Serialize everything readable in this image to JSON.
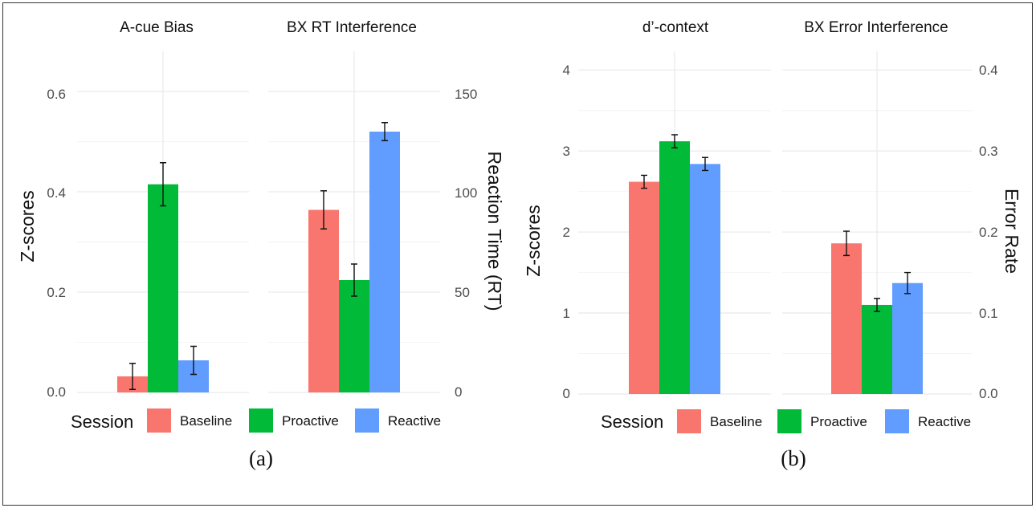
{
  "colors": {
    "Baseline": "#F8766D",
    "Proactive": "#00BA38",
    "Reactive": "#619CFF"
  },
  "figures": [
    {
      "caption": "(a)",
      "legend": {
        "title": "Session",
        "entries": [
          "Baseline",
          "Proactive",
          "Reactive"
        ]
      },
      "left_axis": {
        "label": "Z-scores",
        "ticks": [
          "0.0",
          "0.2",
          "0.4",
          "0.6"
        ]
      },
      "right_axis": {
        "label": "Reaction Time (RT)",
        "ticks": [
          "0",
          "50",
          "100",
          "150"
        ]
      }
    },
    {
      "caption": "(b)",
      "legend": {
        "title": "Session",
        "entries": [
          "Baseline",
          "Proactive",
          "Reactive"
        ]
      },
      "left_axis": {
        "label": "Z-scores",
        "ticks": [
          "0",
          "1",
          "2",
          "3",
          "4"
        ]
      },
      "right_axis": {
        "label": "Error Rate",
        "ticks": [
          "0.0",
          "0.1",
          "0.2",
          "0.3",
          "0.4"
        ]
      }
    }
  ],
  "chart_data": [
    {
      "type": "bar",
      "title": "A-cue Bias",
      "ylabel": "Z-scores",
      "ylim": [
        0,
        0.68
      ],
      "categories": [
        "Baseline",
        "Proactive",
        "Reactive"
      ],
      "values": [
        0.032,
        0.415,
        0.064
      ],
      "error": [
        0.026,
        0.043,
        0.028
      ],
      "grid": true
    },
    {
      "type": "bar",
      "title": "BX RT Interference",
      "ylabel": "Reaction Time (RT)",
      "ylim": [
        0,
        170
      ],
      "categories": [
        "Baseline",
        "Proactive",
        "Reactive"
      ],
      "values": [
        91,
        56,
        130
      ],
      "error": [
        9.5,
        8,
        4.5
      ],
      "grid": true
    },
    {
      "type": "bar",
      "title": "d’-context",
      "ylabel": "Z-scores",
      "ylim": [
        0,
        4.1
      ],
      "categories": [
        "Baseline",
        "Proactive",
        "Reactive"
      ],
      "values": [
        2.62,
        3.12,
        2.84
      ],
      "error": [
        0.08,
        0.08,
        0.08
      ],
      "grid": true
    },
    {
      "type": "bar",
      "title": "BX Error Interference",
      "ylabel": "Error Rate",
      "ylim": [
        0,
        0.41
      ],
      "categories": [
        "Baseline",
        "Proactive",
        "Reactive"
      ],
      "values": [
        0.186,
        0.11,
        0.137
      ],
      "error": [
        0.015,
        0.008,
        0.013
      ],
      "grid": true
    }
  ]
}
